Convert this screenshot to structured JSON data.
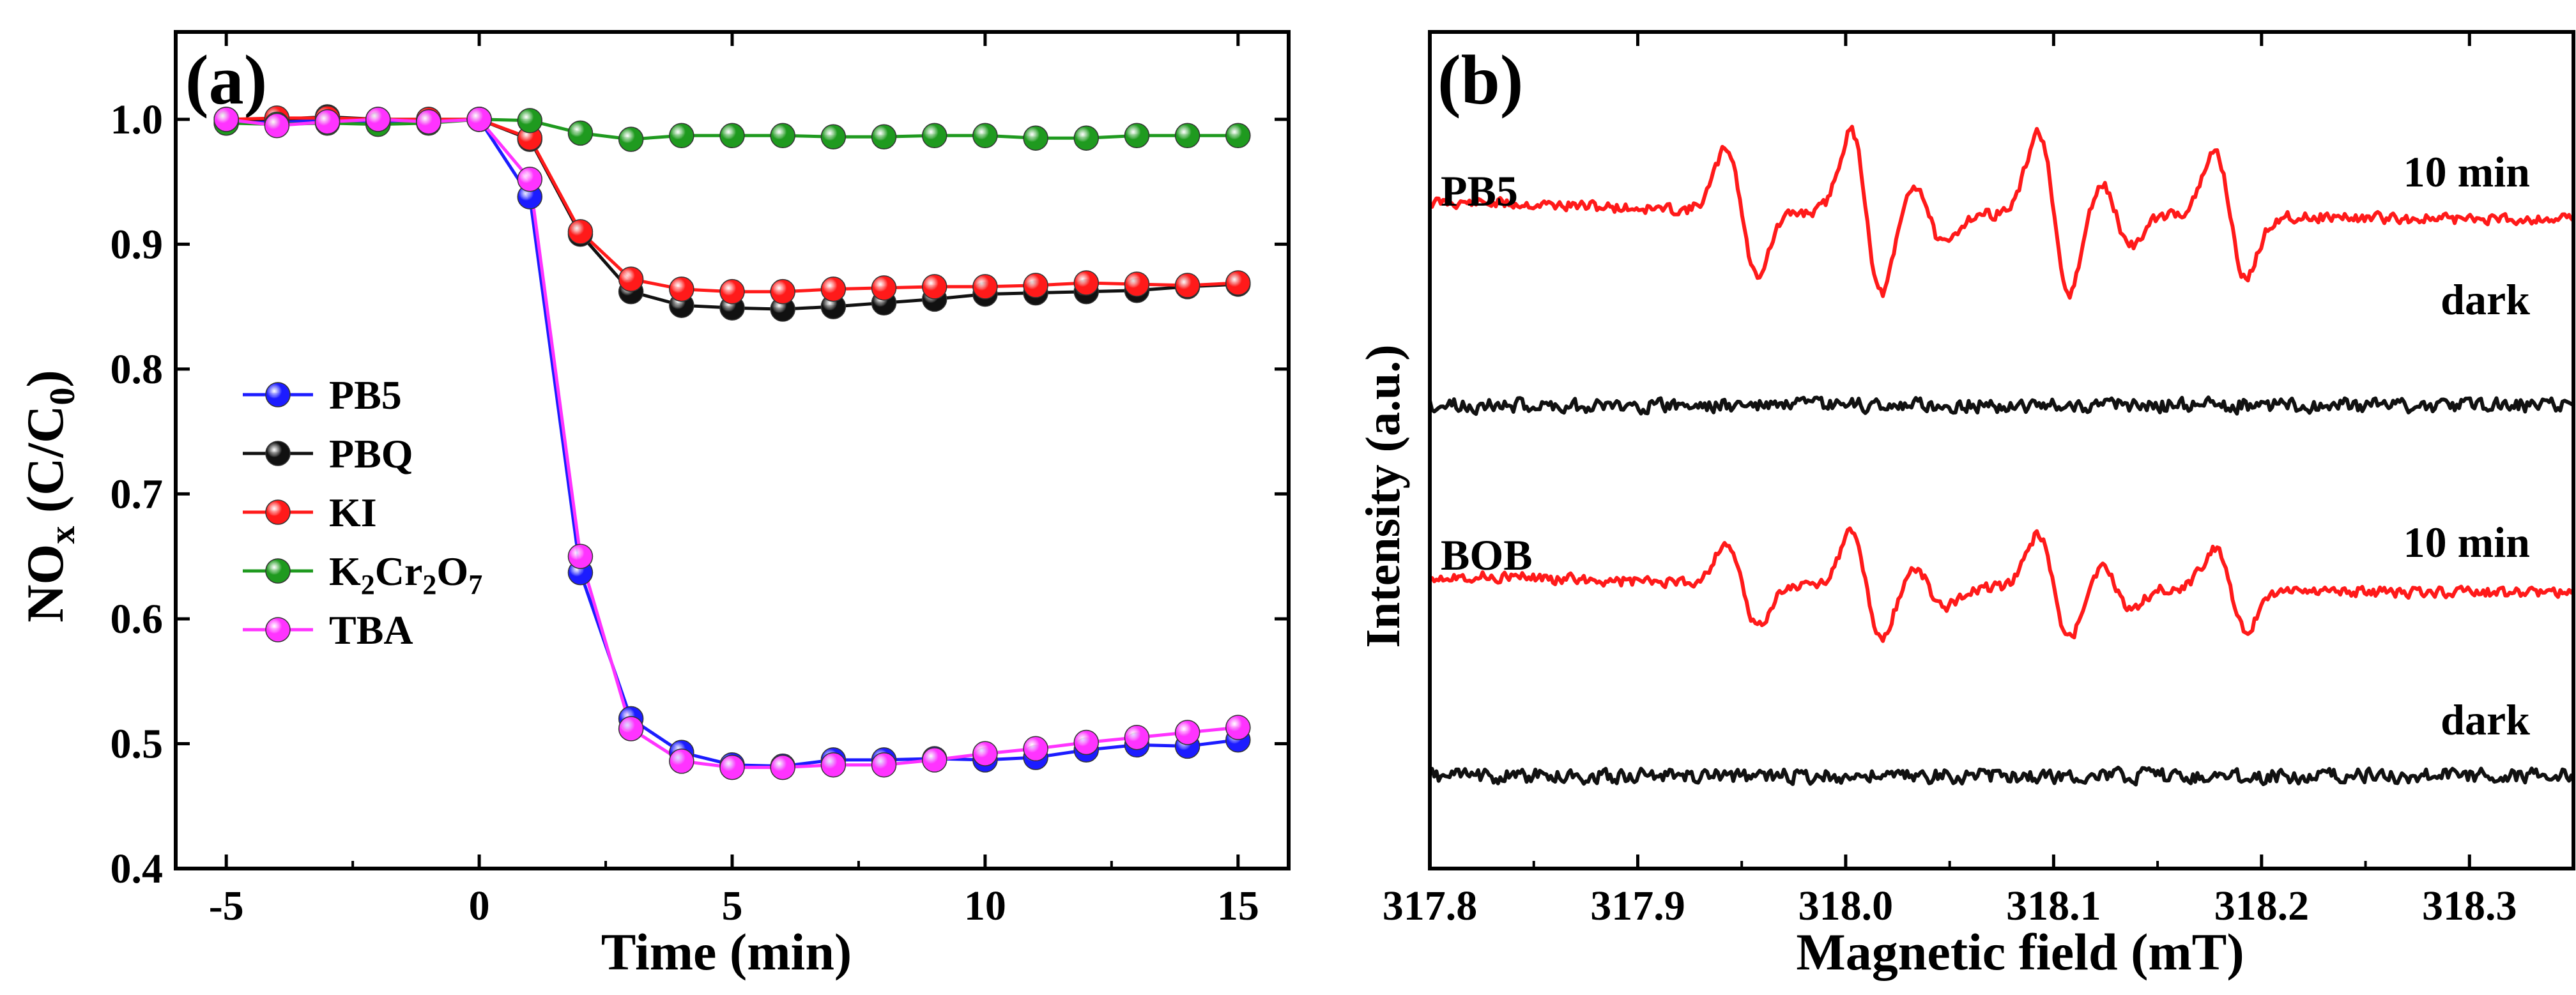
{
  "chart_data": [
    {
      "panel": "(a)",
      "type": "line",
      "title": "",
      "xlabel": "Time (min)",
      "ylabel": {
        "main": "NO",
        "sub1": "x",
        "paren_open": " (C/C",
        "sub2": "0",
        "paren_close": ")"
      },
      "xlim": [
        -6,
        16
      ],
      "ylim": [
        0.4,
        1.07
      ],
      "xticks": [
        -5,
        0,
        5,
        10,
        15
      ],
      "yticks": [
        0.4,
        0.5,
        0.6,
        0.7,
        0.8,
        0.9,
        1.0
      ],
      "legend_position": "center-left",
      "x": [
        -5,
        -4,
        -3,
        -2,
        -1,
        0,
        1,
        2,
        3,
        4,
        5,
        6,
        7,
        8,
        9,
        10,
        11,
        12,
        13,
        14,
        15
      ],
      "series": [
        {
          "name": "PB5",
          "legend": {
            "parts": [
              {
                "text": "PB5",
                "sub": false
              }
            ]
          },
          "color": "#1c1cff",
          "values": [
            0.997,
            0.998,
            0.999,
            0.998,
            0.999,
            1.0,
            0.938,
            0.637,
            0.52,
            0.493,
            0.483,
            0.482,
            0.487,
            0.487,
            0.488,
            0.487,
            0.489,
            0.495,
            0.499,
            0.498,
            0.503
          ]
        },
        {
          "name": "PBQ",
          "legend": {
            "parts": [
              {
                "text": "PBQ",
                "sub": false
              }
            ]
          },
          "color": "#111111",
          "values": [
            1.0,
            1.0,
            1.002,
            1.0,
            1.0,
            1.0,
            0.984,
            0.908,
            0.862,
            0.851,
            0.849,
            0.848,
            0.85,
            0.853,
            0.856,
            0.86,
            0.861,
            0.862,
            0.863,
            0.866,
            0.868
          ]
        },
        {
          "name": "KI",
          "legend": {
            "parts": [
              {
                "text": "KI",
                "sub": false
              }
            ]
          },
          "color": "#ff1a1a",
          "values": [
            1.0,
            1.001,
            1.001,
            1.0,
            1.0,
            1.0,
            0.985,
            0.91,
            0.872,
            0.864,
            0.862,
            0.862,
            0.864,
            0.865,
            0.866,
            0.866,
            0.867,
            0.869,
            0.868,
            0.867,
            0.869
          ]
        },
        {
          "name": "K2Cr2O7",
          "legend": {
            "parts": [
              {
                "text": "K",
                "sub": false
              },
              {
                "text": "2",
                "sub": true
              },
              {
                "text": "Cr",
                "sub": false
              },
              {
                "text": "2",
                "sub": true
              },
              {
                "text": "O",
                "sub": false
              },
              {
                "text": "7",
                "sub": true
              }
            ]
          },
          "color": "#1f9a1f",
          "values": [
            0.997,
            0.996,
            0.997,
            0.996,
            0.997,
            1.0,
            0.999,
            0.989,
            0.984,
            0.987,
            0.987,
            0.987,
            0.986,
            0.986,
            0.987,
            0.987,
            0.985,
            0.985,
            0.987,
            0.987,
            0.987
          ]
        },
        {
          "name": "TBA",
          "legend": {
            "parts": [
              {
                "text": "TBA",
                "sub": false
              }
            ]
          },
          "color": "#ff33ff",
          "values": [
            1.0,
            0.995,
            0.998,
            1.0,
            0.998,
            1.0,
            0.952,
            0.65,
            0.512,
            0.486,
            0.481,
            0.481,
            0.483,
            0.483,
            0.487,
            0.492,
            0.496,
            0.501,
            0.505,
            0.509,
            0.513
          ]
        }
      ]
    },
    {
      "panel": "(b)",
      "type": "line",
      "title": "",
      "xlabel": "Magnetic field (mT)",
      "ylabel": "Intensity (a.u.)",
      "xlim": [
        317.8,
        318.35
      ],
      "xticks": [
        317.8,
        317.9,
        318.0,
        318.1,
        318.2,
        318.3
      ],
      "tick_labels": [
        "317.8",
        "317.9",
        "318.0",
        "318.1",
        "318.2",
        "318.3"
      ],
      "y_axis": "no scale (arbitrary units, offset traces)",
      "peak_fields_mT": [
        317.95,
        318.01,
        318.04,
        318.1,
        318.13,
        318.185
      ],
      "series": [
        {
          "name": "PB5",
          "condition": "10 min",
          "color": "#ff1a1a",
          "signal": "strong 1:2:2:1 quartet"
        },
        {
          "name": "PB5",
          "condition": "dark",
          "color": "#111111",
          "signal": "baseline noise"
        },
        {
          "name": "BOB",
          "condition": "10 min",
          "color": "#ff1a1a",
          "signal": "weak 1:2:2:1 quartet"
        },
        {
          "name": "BOB",
          "condition": "dark",
          "color": "#111111",
          "signal": "baseline noise"
        }
      ],
      "annotations": {
        "sample_labels": [
          "PB5",
          "BOB"
        ],
        "condition_labels": [
          "10 min",
          "dark",
          "10 min",
          "dark"
        ]
      }
    }
  ]
}
